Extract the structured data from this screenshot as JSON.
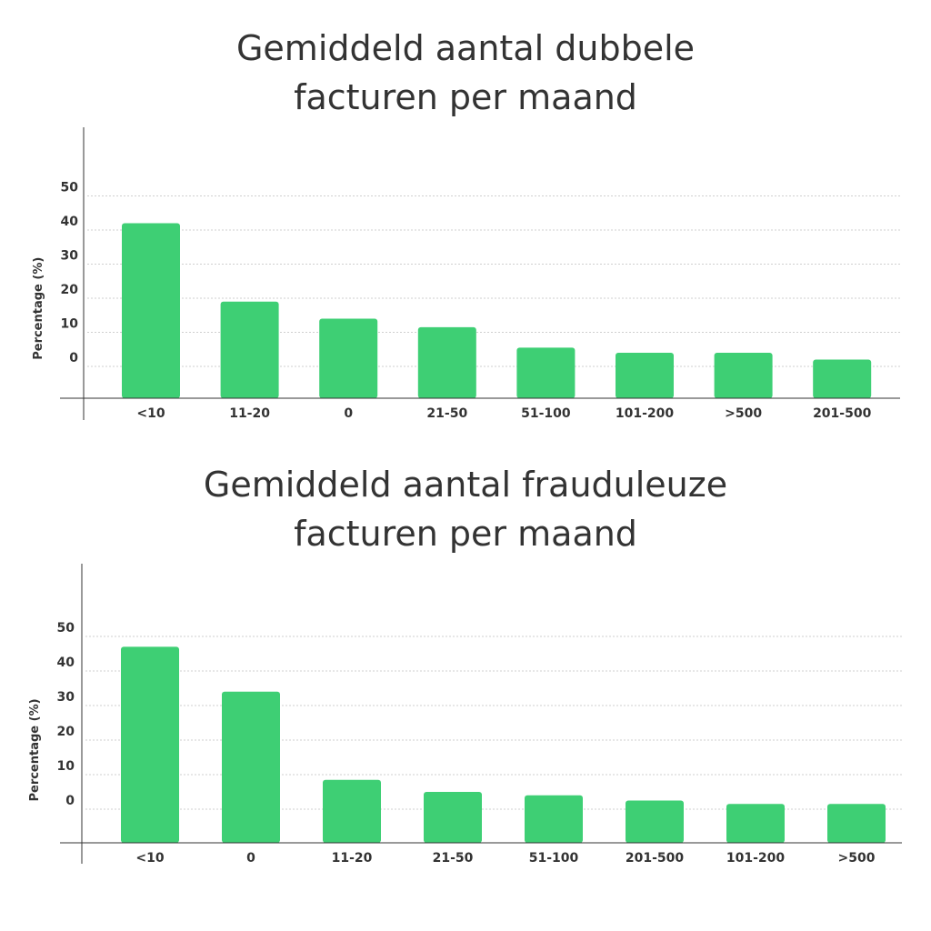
{
  "chart_data": [
    {
      "type": "bar",
      "title": "Gemiddeld aantal dubbele facturen per maand",
      "title_lines": [
        "Gemiddeld aantal dubbele",
        "facturen per maand"
      ],
      "ylabel": "Percentage (%)",
      "xlabel": "",
      "y_ticks": [
        "50",
        "40",
        "30",
        "20",
        "10",
        "0"
      ],
      "categories": [
        "<10",
        "11-20",
        "0",
        "21-50",
        "51-100",
        "101-200",
        ">500",
        "201-500"
      ],
      "values": [
        42,
        19,
        14,
        11.5,
        5.5,
        4,
        4,
        2
      ],
      "ylim": [
        0,
        50
      ],
      "bar_color": "#3ecf74",
      "grid": true
    },
    {
      "type": "bar",
      "title": "Gemiddeld aantal frauduleuze facturen per maand",
      "title_lines": [
        "Gemiddeld aantal frauduleuze",
        "facturen per maand"
      ],
      "ylabel": "Percentage (%)",
      "xlabel": "",
      "y_ticks": [
        "50",
        "40",
        "30",
        "20",
        "10",
        "0"
      ],
      "categories": [
        "<10",
        "0",
        "11-20",
        "21-50",
        "51-100",
        "201-500",
        "101-200",
        ">500"
      ],
      "values": [
        47,
        34,
        8.5,
        5,
        4,
        2.5,
        1.5,
        1.5
      ],
      "ylim": [
        0,
        50
      ],
      "bar_color": "#3ecf74",
      "grid": true
    }
  ]
}
